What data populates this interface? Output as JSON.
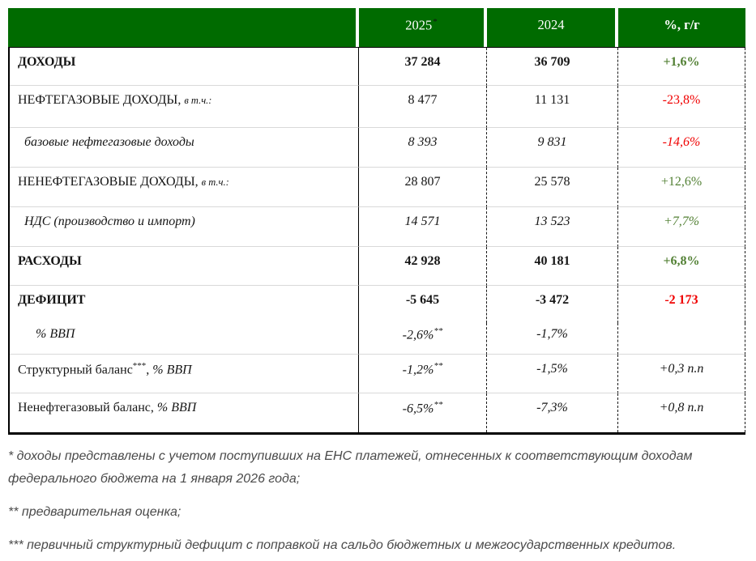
{
  "colors": {
    "header_bg": "#006b00",
    "positive": "#538135",
    "negative": "#f00000"
  },
  "table": {
    "header": {
      "col_label": "",
      "col_2025": "2025",
      "col_2025_sup": "*",
      "col_2024": "2024",
      "col_yoy": "%, г/г"
    },
    "rows": [
      {
        "label_parts": [
          {
            "t": "ДОХОДЫ",
            "s": "bold"
          }
        ],
        "indent": 0,
        "v2025": "37 284",
        "v2025_sup": "",
        "v2024": "36 709",
        "yoy": "+1,6%",
        "value_style": "bold",
        "yoy_color": "green",
        "separator_below": true
      },
      {
        "label_parts": [
          {
            "t": "НЕФТЕГАЗОВЫЕ ДОХОДЫ, ",
            "s": "regular"
          },
          {
            "t": "в т.ч.:",
            "s": "small-italic"
          }
        ],
        "indent": 0,
        "v2025": "8 477",
        "v2025_sup": "",
        "v2024": "11 131",
        "yoy": "-23,8%",
        "value_style": "regular",
        "yoy_color": "red",
        "separator_below": true
      },
      {
        "label_parts": [
          {
            "t": "базовые нефтегазовые доходы",
            "s": "italic"
          }
        ],
        "indent": 1,
        "v2025": "8 393",
        "v2025_sup": "",
        "v2024": "9 831",
        "yoy": "-14,6%",
        "value_style": "italic",
        "yoy_color": "red",
        "separator_below": true
      },
      {
        "label_parts": [
          {
            "t": "НЕНЕФТЕГАЗОВЫЕ ДОХОДЫ, ",
            "s": "regular"
          },
          {
            "t": "в т.ч.:",
            "s": "small-italic"
          }
        ],
        "indent": 0,
        "v2025": "28 807",
        "v2025_sup": "",
        "v2024": "25 578",
        "yoy": "+12,6%",
        "value_style": "regular",
        "yoy_color": "green",
        "separator_below": true
      },
      {
        "label_parts": [
          {
            "t": "НДС (производство и импорт)",
            "s": "italic"
          }
        ],
        "indent": 1,
        "v2025": "14 571",
        "v2025_sup": "",
        "v2024": "13 523",
        "yoy": "+7,7%",
        "value_style": "italic",
        "yoy_color": "green",
        "separator_below": true
      },
      {
        "label_parts": [
          {
            "t": "РАСХОДЫ",
            "s": "bold"
          }
        ],
        "indent": 0,
        "v2025": "42 928",
        "v2025_sup": "",
        "v2024": "40 181",
        "yoy": "+6,8%",
        "value_style": "bold",
        "yoy_color": "green",
        "separator_below": true
      },
      {
        "label_parts": [
          {
            "t": "ДЕФИЦИТ",
            "s": "bold"
          }
        ],
        "indent": 0,
        "v2025": "-5 645",
        "v2025_sup": "",
        "v2024": "-3 472",
        "yoy": "-2 173",
        "value_style": "bold",
        "yoy_color": "red",
        "separator_below": false
      },
      {
        "label_parts": [
          {
            "t": "% ВВП",
            "s": "italic"
          }
        ],
        "indent": 2,
        "v2025": "-2,6%",
        "v2025_sup": "**",
        "v2024": "-1,7%",
        "yoy": "",
        "value_style": "italic",
        "yoy_color": "black",
        "separator_below": true
      },
      {
        "label_parts": [
          {
            "t": "Структурный баланс",
            "s": "regular"
          },
          {
            "t": "***",
            "s": "sup"
          },
          {
            "t": ", ",
            "s": "regular"
          },
          {
            "t": "% ВВП",
            "s": "italic"
          }
        ],
        "indent": 0,
        "v2025": "-1,2%",
        "v2025_sup": "**",
        "v2024": "-1,5%",
        "yoy": "+0,3 п.п",
        "value_style": "italic",
        "yoy_color": "black",
        "separator_below": true
      },
      {
        "label_parts": [
          {
            "t": "Ненефтегазовый баланс, ",
            "s": "regular"
          },
          {
            "t": "% ВВП",
            "s": "italic"
          }
        ],
        "indent": 0,
        "v2025": "-6,5%",
        "v2025_sup": "**",
        "v2024": "-7,3%",
        "yoy": "+0,8 п.п",
        "value_style": "italic",
        "yoy_color": "black",
        "separator_below": true
      }
    ]
  },
  "footnotes": [
    "* доходы представлены с учетом поступивших на ЕНС платежей, отнесенных к соответствующим доходам\nфедерального бюджета на 1 января 2026 года;",
    "** предварительная оценка;",
    "*** первичный структурный дефицит с поправкой на сальдо бюджетных и межгосударственных кредитов."
  ]
}
